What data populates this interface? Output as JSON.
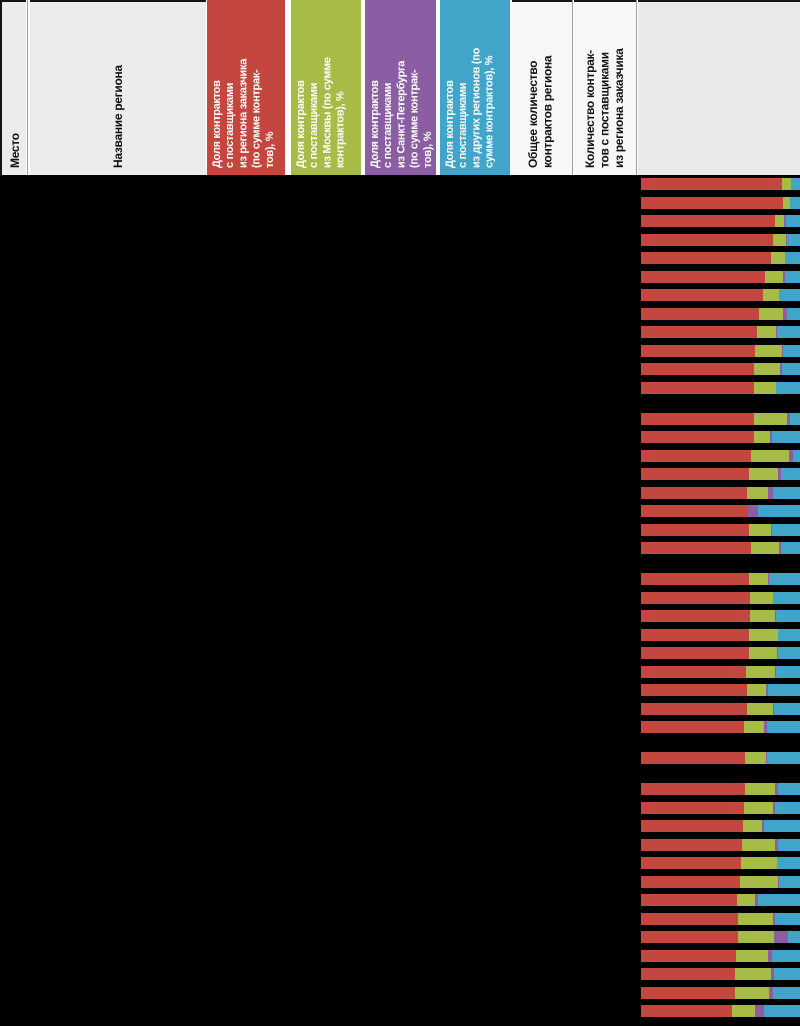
{
  "table": {
    "columns": {
      "place": {
        "label": "Место",
        "bg": "#ececec",
        "text_color": "#111111"
      },
      "region_name": {
        "label": "Название региона",
        "bg": "#ececec",
        "text_color": "#111111"
      },
      "share_region": {
        "label": "Доля контрактов\nс поставщиками\nиз региона заказчика\n(по сумме контрак-\nтов), %",
        "bg": "#c3463f",
        "text_color": "#ffffff"
      },
      "share_moscow": {
        "label": "Доля контрактов\nс поставщиками\nиз Москвы (по сумме\nконтрактов), %",
        "bg": "#a7bc47",
        "text_color": "#ffffff"
      },
      "share_spb": {
        "label": "Доля контрактов\nс поставщиками\nиз Санкт-Петербурга\n(по сумме контрак-\nтов), %",
        "bg": "#8b5ea4",
        "text_color": "#ffffff"
      },
      "share_other": {
        "label": "Доля контрактов\nс поставщиками\nиз других регионов (по\nсумме контрактов), %",
        "bg": "#41a5c9",
        "text_color": "#ffffff"
      },
      "total_contracts": {
        "label": "Общее количество\nконтрактов региона",
        "bg": "#f7f7f7",
        "text_color": "#111111"
      },
      "count_region_contracts": {
        "label": "Количество контрак-\nтов с поставщиками\nиз региона заказчика",
        "bg": "#f7f7f7",
        "text_color": "#111111"
      }
    },
    "body_bg": "#000000"
  },
  "chart_data": {
    "type": "bar",
    "orientation": "horizontal",
    "stacked": true,
    "normalized_to_100_percent": true,
    "unit": "%",
    "series": [
      {
        "name": "поставщики из региона заказчика",
        "color": "#c3463f"
      },
      {
        "name": "поставщики из Москвы",
        "color": "#a7bc47"
      },
      {
        "name": "поставщики из Санкт-Петербурга",
        "color": "#8b5ea4"
      },
      {
        "name": "поставщики из других регионов",
        "color": "#41a5c9"
      }
    ],
    "groups": [
      {
        "bars": [
          [
            88.5,
            5.7,
            0.0,
            5.8
          ],
          [
            89.1,
            4.6,
            0.0,
            6.3
          ],
          [
            84.3,
            5.7,
            1.3,
            8.7
          ],
          [
            83.2,
            8.0,
            0.6,
            8.2
          ],
          [
            81.8,
            8.8,
            0.0,
            9.4
          ],
          [
            78.0,
            11.1,
            1.5,
            9.4
          ],
          [
            76.5,
            10.4,
            0.0,
            13.1
          ],
          [
            74.4,
            15.1,
            2.1,
            8.4
          ],
          [
            72.8,
            12.2,
            0.8,
            14.2
          ],
          [
            71.7,
            16.8,
            0.6,
            10.9
          ],
          [
            71.3,
            16.2,
            1.5,
            11.0
          ],
          [
            71.3,
            13.7,
            0.0,
            15.0
          ]
        ]
      },
      {
        "bars": [
          [
            71.1,
            20.6,
            2.1,
            6.2
          ],
          [
            71.1,
            10.1,
            1.5,
            17.3
          ],
          [
            69.2,
            24.1,
            2.1,
            4.6
          ],
          [
            68.1,
            18.2,
            1.5,
            12.2
          ],
          [
            66.9,
            13.2,
            2.8,
            17.1
          ],
          [
            67.3,
            0.0,
            6.6,
            26.1
          ],
          [
            67.9,
            13.6,
            0.8,
            17.7
          ],
          [
            69.2,
            17.8,
            1.0,
            12.0
          ]
        ]
      },
      {
        "bars": [
          [
            67.9,
            11.8,
            1.0,
            19.3
          ],
          [
            68.6,
            14.7,
            0.0,
            16.7
          ],
          [
            68.6,
            15.7,
            0.6,
            15.1
          ],
          [
            67.9,
            18.4,
            0.0,
            13.7
          ],
          [
            67.9,
            17.4,
            1.0,
            13.7
          ],
          [
            66.0,
            18.2,
            1.0,
            14.8
          ],
          [
            66.5,
            11.9,
            1.3,
            20.3
          ],
          [
            66.5,
            16.4,
            0.8,
            16.3
          ],
          [
            64.8,
            12.8,
            1.9,
            20.5
          ]
        ]
      },
      {
        "bars": [
          [
            65.4,
            13.2,
            0.8,
            20.6
          ]
        ]
      },
      {
        "bars": [
          [
            65.4,
            18.9,
            2.1,
            13.6
          ],
          [
            65.0,
            18.2,
            1.0,
            15.8
          ],
          [
            64.3,
            11.5,
            1.7,
            22.5
          ],
          [
            63.7,
            20.5,
            2.1,
            13.7
          ],
          [
            62.9,
            22.4,
            0.0,
            14.7
          ],
          [
            62.3,
            24.1,
            0.6,
            13.0
          ],
          [
            60.2,
            11.5,
            2.1,
            26.2
          ],
          [
            60.8,
            22.4,
            1.0,
            15.8
          ],
          [
            60.8,
            22.8,
            8.6,
            7.8
          ],
          [
            59.5,
            20.1,
            2.9,
            17.5
          ],
          [
            59.1,
            22.6,
            1.9,
            16.4
          ],
          [
            59.1,
            21.4,
            2.7,
            16.8
          ],
          [
            57.4,
            14.3,
            5.9,
            22.4
          ]
        ]
      }
    ]
  }
}
